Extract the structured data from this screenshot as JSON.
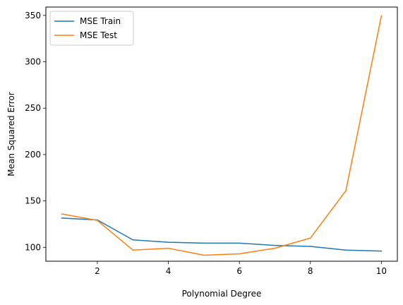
{
  "chart_data": {
    "type": "line",
    "title": "",
    "xlabel": "Polynomial Degree",
    "ylabel": "Mean Squared Error",
    "xlim": [
      0.55,
      10.45
    ],
    "ylim": [
      85,
      359
    ],
    "x_ticks": [
      2,
      4,
      6,
      8,
      10
    ],
    "y_ticks": [
      100,
      150,
      200,
      250,
      300,
      350
    ],
    "grid": false,
    "legend_position": "upper-left",
    "x": [
      1,
      2,
      3,
      4,
      5,
      6,
      7,
      8,
      9,
      10
    ],
    "series": [
      {
        "name": "MSE Train",
        "color": "#1f77b4",
        "values": [
          131.5,
          129.5,
          108.0,
          105.5,
          104.5,
          104.5,
          102.0,
          101.0,
          97.0,
          96.0
        ]
      },
      {
        "name": "MSE Test",
        "color": "#ff7f0e",
        "values": [
          136.0,
          129.0,
          97.0,
          99.0,
          91.5,
          93.0,
          99.0,
          110.0,
          161.0,
          349.5
        ]
      }
    ]
  }
}
